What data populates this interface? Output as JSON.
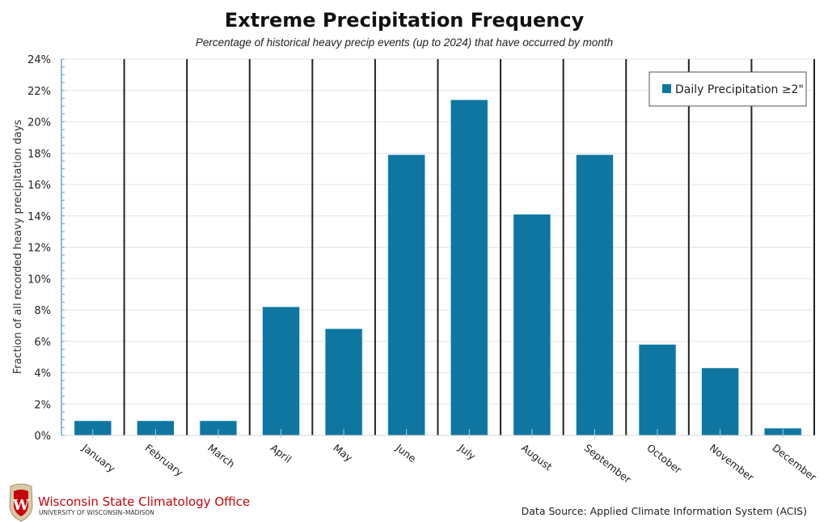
{
  "chart_data": {
    "type": "bar",
    "title": "Extreme Precipitation Frequency",
    "subtitle": "Percentage of historical heavy precip events (up to 2024) that have occurred by month",
    "xlabel": "",
    "ylabel": "Fraction of all recorded heavy precipitation days",
    "ylim": [
      0,
      24
    ],
    "yticks": [
      0,
      2,
      4,
      6,
      8,
      10,
      12,
      14,
      16,
      18,
      20,
      22,
      24
    ],
    "ytick_labels": [
      "0%",
      "2%",
      "4%",
      "6%",
      "8%",
      "10%",
      "12%",
      "14%",
      "16%",
      "18%",
      "20%",
      "22%",
      "24%"
    ],
    "grid": true,
    "legend_position": "top-right",
    "categories": [
      "January",
      "February",
      "March",
      "April",
      "May",
      "June",
      "July",
      "August",
      "September",
      "October",
      "November",
      "December"
    ],
    "series": [
      {
        "name": "Daily Precipitation ≥2\"",
        "color": "#0e76a0",
        "values": [
          0.93,
          0.93,
          0.93,
          8.2,
          6.8,
          17.9,
          21.4,
          14.1,
          17.9,
          5.8,
          4.3,
          0.46
        ]
      }
    ]
  },
  "footer": {
    "logo_title": "Wisconsin State Climatology Office",
    "logo_subtitle": "UNIVERSITY OF WISCONSIN–MADISON",
    "data_source": "Data Source: Applied Climate Information System (ACIS)"
  },
  "colors": {
    "bar": "#0e76a0",
    "axis_tick": "#6fa3bd",
    "divider": "#222222",
    "grid": "#e3e3e3",
    "brand_red": "#c5050c"
  }
}
